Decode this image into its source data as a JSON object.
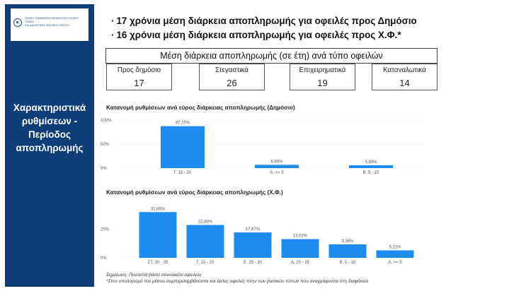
{
  "sidebar": {
    "logo_lines": [
      "ΓΕΝΙΚΗ ΓΡΑΜΜΑΤΕΙΑ ΧΡΗΜΑΤΟΠΙΣΤΩΤΙΚΟΥ ΤΟΜΕΑ",
      "ΚΑΙ ΔΙΑΧΕΙΡΙΣΗΣ ΙΔΙΩΤΙΚΟΥ ΧΡΕΟΥΣ"
    ],
    "title_lines": [
      "Χαρακτηριστικά",
      "ρυθμίσεων -",
      "Περίοδος",
      "αποπληρωμής"
    ],
    "color": "#0f3d78"
  },
  "headlines": [
    "17 χρόνια μέση διάρκεια αποπληρωμής για οφειλές προς Δημόσιο",
    "16 χρόνια μέση διάρκεια αποπληρωμής για οφειλές προς Χ.Φ.*"
  ],
  "duration_table": {
    "title": "Μέση διάρκεια αποπληρωμής (σε έτη) ανά τύπο οφειλών",
    "cards": [
      {
        "label": "Προς δημόσιο",
        "value": "17"
      },
      {
        "label": "Στεγαστικά",
        "value": "26"
      },
      {
        "label": "Επιχειρηματικά",
        "value": "19"
      },
      {
        "label": "Καταναλωτικά",
        "value": "14"
      }
    ]
  },
  "chart_data": [
    {
      "type": "bar",
      "title": "Κατανομή ρυθμίσεων ανά εύρος διάρκειας αποπληρωμής (Δημόσιο)",
      "categories": [
        "Γ. 15 - 20",
        "Α. <= 5",
        "Β. 5 - 15"
      ],
      "values": [
        87.25,
        6.86,
        5.89
      ],
      "value_labels": [
        "87,25%",
        "6,86%",
        "5,89%"
      ],
      "y_ticks": [
        "100%",
        "50%",
        "0%"
      ],
      "ylim": [
        0,
        100
      ],
      "bar_color": "#1e8bf0"
    },
    {
      "type": "bar",
      "title": "Κατανομή ρυθμίσεων ανά εύρος διάρκειας αποπληρωμής (Χ.Φ.)",
      "categories": [
        "ΣΤ. 30 - 35",
        "Γ. 15 - 20",
        "Ε. 25 - 30",
        "Δ. 20 - 25",
        "Β. 5 - 15",
        "Α. <= 5"
      ],
      "values": [
        31.86,
        22.88,
        17.67,
        13.02,
        9.36,
        5.21
      ],
      "value_labels": [
        "31,86%",
        "22,88%",
        "17,67%",
        "13,02%",
        "9,36%",
        "5,21%"
      ],
      "y_ticks": [
        "20%",
        "0%"
      ],
      "ylim": [
        0,
        32
      ],
      "bar_color": "#1e8bf0"
    }
  ],
  "notes": [
    "Σημείωση: Ποσοστά βάσει συνολικών οφειλών",
    "*Στον υπολογισμό του μέσου συμπεριλαμβάνονται και άλλες οφειλές πλην των βασικών τύπων που αναγράφονται στη διαφάνεια"
  ]
}
